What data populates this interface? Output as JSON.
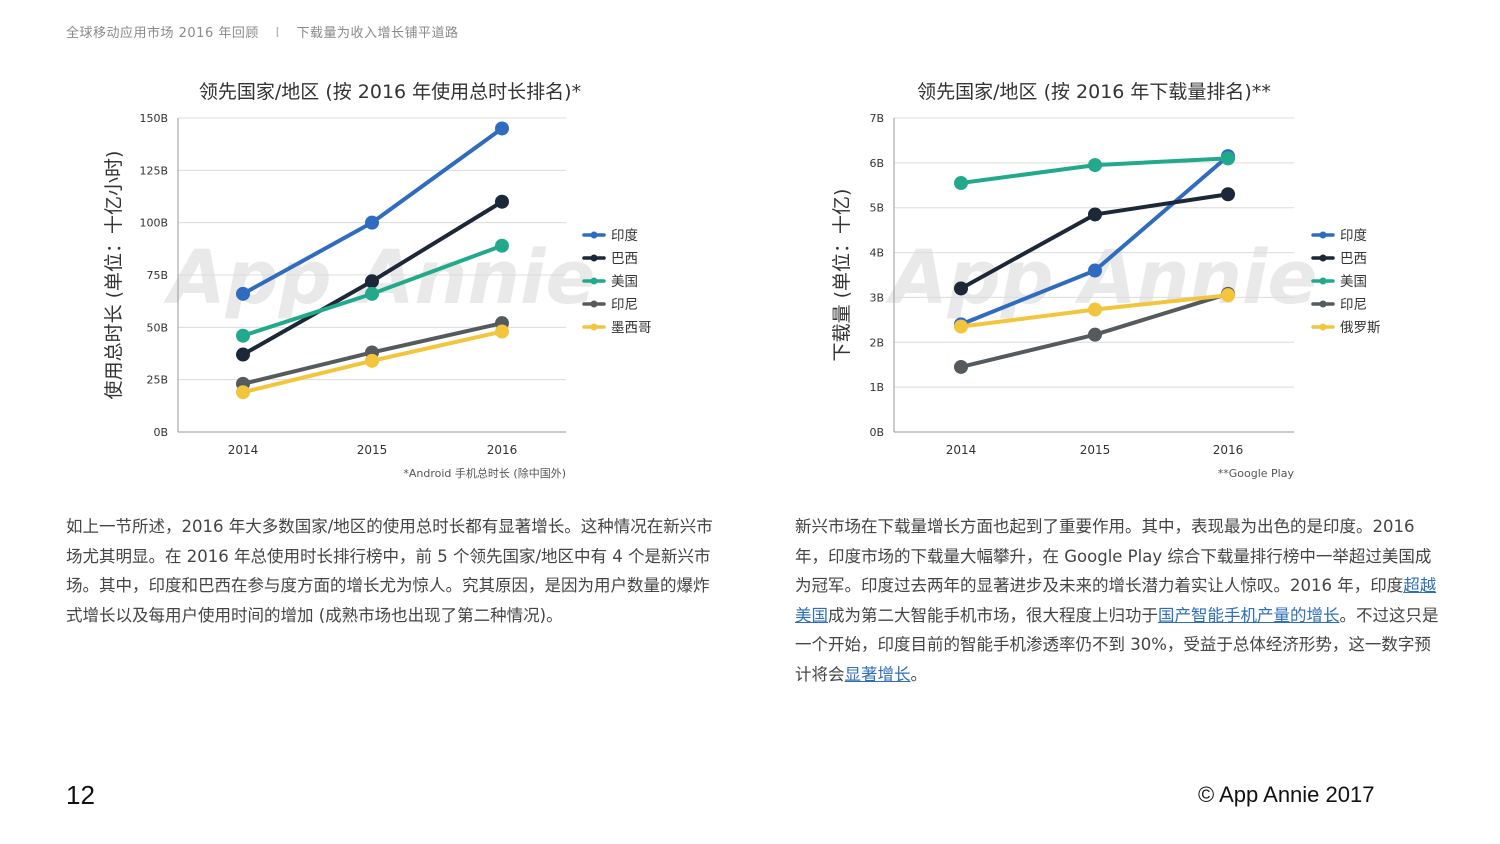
{
  "header": {
    "left": "全球移动应用市场 2016 年回顾",
    "separator": "I",
    "right": "下载量为收入增长铺平道路"
  },
  "watermark": "App Annie",
  "chart_data": [
    {
      "type": "line",
      "title": "领先国家/地区 (按 2016 年使用总时长排名)*",
      "ylabel": "使用总时长 (单位：十亿小时)",
      "x": [
        "2014",
        "2015",
        "2016"
      ],
      "yticks": [
        "0B",
        "25B",
        "50B",
        "75B",
        "100B",
        "125B",
        "150B"
      ],
      "ylim": [
        0,
        150
      ],
      "footnote": "*Android 手机总时长 (除中国外)",
      "legend_position": "right",
      "series": [
        {
          "name": "印度",
          "color": "#2f6cc0",
          "values": [
            66,
            100,
            145
          ]
        },
        {
          "name": "巴西",
          "color": "#1c2737",
          "values": [
            37,
            72,
            110
          ]
        },
        {
          "name": "美国",
          "color": "#22a98c",
          "values": [
            46,
            66,
            89
          ]
        },
        {
          "name": "印尼",
          "color": "#555a5f",
          "values": [
            23,
            38,
            52
          ]
        },
        {
          "name": "墨西哥",
          "color": "#f2c53d",
          "values": [
            19,
            34,
            48
          ]
        }
      ]
    },
    {
      "type": "line",
      "title": "领先国家/地区 (按 2016 年下载量排名)**",
      "ylabel": "下载量 (单位：十亿)",
      "x": [
        "2014",
        "2015",
        "2016"
      ],
      "yticks": [
        "0B",
        "1B",
        "2B",
        "3B",
        "4B",
        "5B",
        "6B",
        "7B"
      ],
      "ylim": [
        0,
        7
      ],
      "footnote": "**Google Play",
      "legend_position": "right",
      "series": [
        {
          "name": "印度",
          "color": "#2f6cc0",
          "values": [
            2.4,
            3.6,
            6.15
          ]
        },
        {
          "name": "巴西",
          "color": "#1c2737",
          "values": [
            3.2,
            4.85,
            5.3
          ]
        },
        {
          "name": "美国",
          "color": "#22a98c",
          "values": [
            5.55,
            5.95,
            6.1
          ]
        },
        {
          "name": "印尼",
          "color": "#555a5f",
          "values": [
            1.45,
            2.17,
            3.08
          ]
        },
        {
          "name": "俄罗斯",
          "color": "#f2c53d",
          "values": [
            2.35,
            2.73,
            3.05
          ]
        }
      ]
    }
  ],
  "para_left": "如上一节所述，2016 年大多数国家/地区的使用总时长都有显著增长。这种情况在新兴市场尤其明显。在 2016 年总使用时长排行榜中，前 5 个领先国家/地区中有 4 个是新兴市场。其中，印度和巴西在参与度方面的增长尤为惊人。究其原因，是因为用户数量的爆炸式增长以及每用户使用时间的增加 (成熟市场也出现了第二种情况)。",
  "para_right": {
    "t1": "新兴市场在下载量增长方面也起到了重要作用。其中，表现最为出色的是印度。2016 年，印度市场的下载量大幅攀升，在 Google Play 综合下载量排行榜中一举超过美国成为冠军。印度过去两年的显著进步及未来的增长潜力着实让人惊叹。2016 年，印度",
    "link1": "超越美国",
    "t2": "成为第二大智能手机市场，很大程度上归功于",
    "link2": "国产智能手机产量的增长",
    "t3": "。不过这只是一个开始，印度目前的智能手机渗透率仍不到 30%，受益于总体经济形势，这一数字预计将会",
    "link3": "显著增长",
    "t4": "。"
  },
  "page_number": "12",
  "copyright": "© App Annie 2017"
}
